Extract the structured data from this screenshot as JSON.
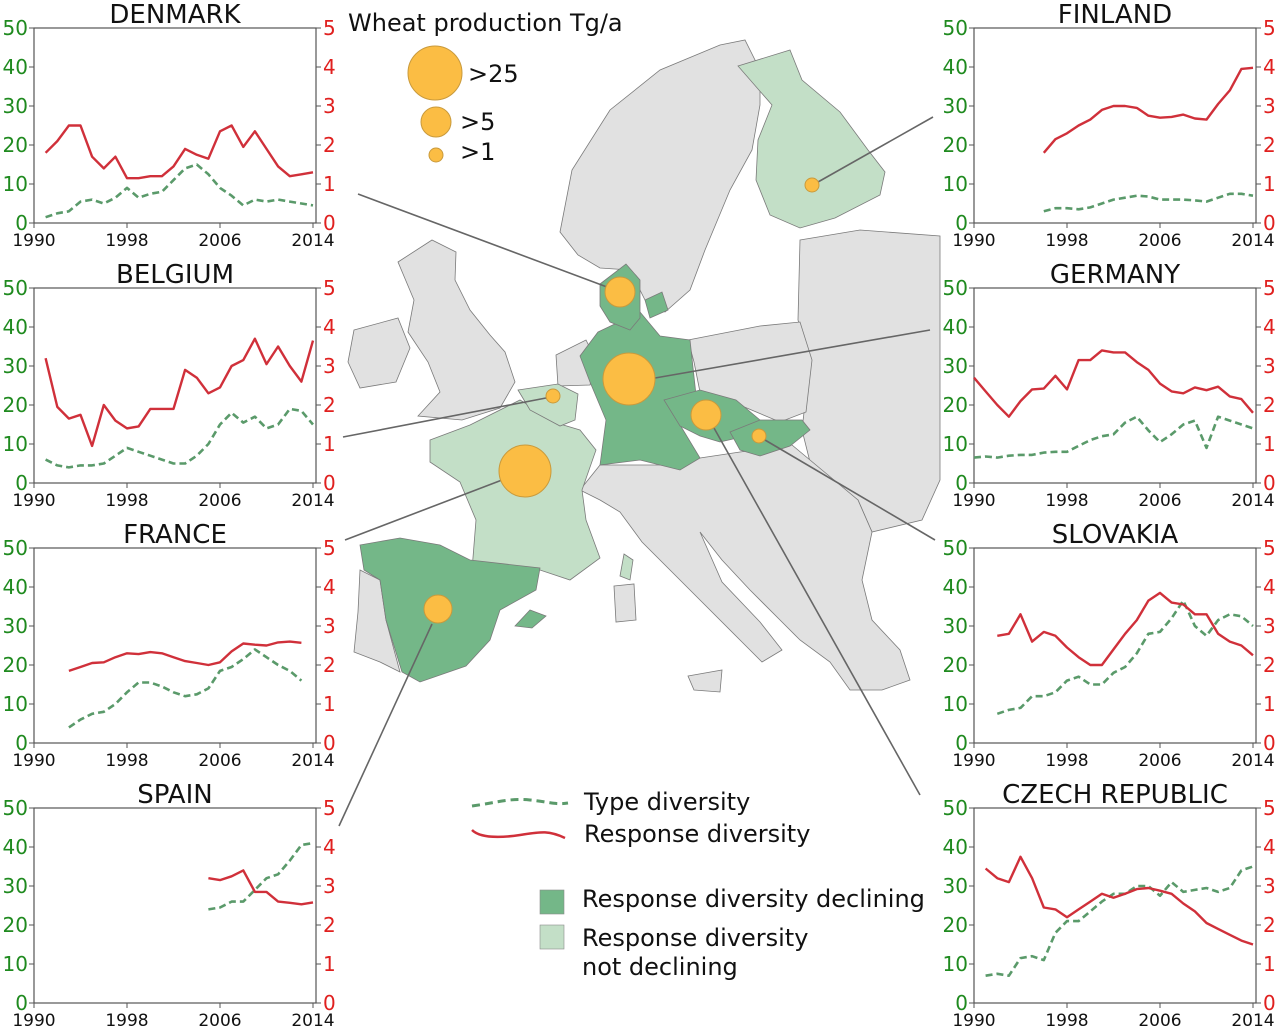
{
  "map": {
    "size_legend_title": "Wheat production Tg/a",
    "size_legend": [
      ">25",
      ">5",
      ">1"
    ],
    "colors": {
      "declining": "#74b788",
      "not_declining": "#c3dfc7",
      "other": "#e1e1e1",
      "bubble": "#fbbd44"
    }
  },
  "legend": {
    "type_diversity": "Type diversity",
    "response_diversity": "Response diversity",
    "declining": "Response diversity declining",
    "not_declining_line1": "Response diversity",
    "not_declining_line2": "not declining"
  },
  "chart_data": [
    {
      "type": "line",
      "title": "DENMARK",
      "xlim": [
        1990,
        2014
      ],
      "xticks": [
        "1990",
        "1998",
        "2006",
        "2014"
      ],
      "ylim_left": [
        0,
        50
      ],
      "yticks_left": [
        "0",
        "10",
        "20",
        "30",
        "40",
        "50"
      ],
      "ylim_right": [
        0,
        5
      ],
      "yticks_right": [
        "0",
        "1",
        "2",
        "3",
        "4",
        "5"
      ],
      "series": [
        {
          "name": "Type diversity",
          "axis": "left",
          "start": 1991,
          "values": [
            1.5,
            2.5,
            3,
            5.5,
            6,
            5,
            6.5,
            9,
            6.5,
            7.5,
            8,
            11,
            14,
            15,
            12.5,
            9,
            7,
            4.5,
            6,
            5.5,
            6,
            5.5,
            5,
            4.5
          ]
        },
        {
          "name": "Response diversity",
          "axis": "right",
          "start": 1991,
          "values": [
            1.8,
            2.1,
            2.5,
            2.5,
            1.7,
            1.4,
            1.7,
            1.15,
            1.15,
            1.2,
            1.2,
            1.45,
            1.9,
            1.75,
            1.65,
            2.35,
            2.5,
            1.95,
            2.35,
            1.9,
            1.45,
            1.2,
            1.25,
            1.3
          ]
        }
      ]
    },
    {
      "type": "line",
      "title": "BELGIUM",
      "xlim": [
        1990,
        2014
      ],
      "xticks": [
        "1990",
        "1998",
        "2006",
        "2014"
      ],
      "ylim_left": [
        0,
        50
      ],
      "yticks_left": [
        "0",
        "10",
        "20",
        "30",
        "40",
        "50"
      ],
      "ylim_right": [
        0,
        5
      ],
      "yticks_right": [
        "0",
        "1",
        "2",
        "3",
        "4",
        "5"
      ],
      "series": [
        {
          "name": "Type diversity",
          "axis": "left",
          "start": 1991,
          "values": [
            6,
            4.5,
            4,
            4.5,
            4.5,
            5,
            7,
            9,
            8,
            7,
            6,
            5,
            5,
            7,
            10,
            15,
            18,
            15.5,
            17,
            14,
            15,
            19,
            18.5,
            15
          ]
        },
        {
          "name": "Response diversity",
          "axis": "right",
          "start": 1991,
          "values": [
            3.2,
            1.95,
            1.65,
            1.75,
            0.95,
            2.0,
            1.6,
            1.4,
            1.45,
            1.9,
            1.9,
            1.9,
            2.9,
            2.7,
            2.3,
            2.45,
            3.0,
            3.15,
            3.7,
            3.05,
            3.5,
            3.0,
            2.6,
            3.65
          ]
        }
      ]
    },
    {
      "type": "line",
      "title": "FRANCE",
      "xlim": [
        1990,
        2014
      ],
      "xticks": [
        "1990",
        "1998",
        "2006",
        "2014"
      ],
      "ylim_left": [
        0,
        50
      ],
      "yticks_left": [
        "0",
        "10",
        "20",
        "30",
        "40",
        "50"
      ],
      "ylim_right": [
        0,
        5
      ],
      "yticks_right": [
        "0",
        "1",
        "2",
        "3",
        "4",
        "5"
      ],
      "series": [
        {
          "name": "Type diversity",
          "axis": "left",
          "start": 1993,
          "values": [
            4,
            6,
            7.5,
            8,
            10,
            13,
            15.5,
            15.5,
            14.5,
            13,
            12,
            12.5,
            14,
            18.5,
            19.5,
            21.5,
            24,
            22,
            20,
            18.5,
            16
          ]
        },
        {
          "name": "Response diversity",
          "axis": "right",
          "start": 1993,
          "values": [
            1.85,
            1.95,
            2.05,
            2.07,
            2.2,
            2.3,
            2.28,
            2.33,
            2.3,
            2.2,
            2.1,
            2.05,
            2.0,
            2.07,
            2.35,
            2.55,
            2.52,
            2.5,
            2.58,
            2.6,
            2.57
          ]
        }
      ]
    },
    {
      "type": "line",
      "title": "SPAIN",
      "xlim": [
        1990,
        2014
      ],
      "xticks": [
        "1990",
        "1998",
        "2006",
        "2014"
      ],
      "ylim_left": [
        0,
        50
      ],
      "yticks_left": [
        "0",
        "10",
        "20",
        "30",
        "40",
        "50"
      ],
      "ylim_right": [
        0,
        5
      ],
      "yticks_right": [
        "0",
        "1",
        "2",
        "3",
        "4",
        "5"
      ],
      "series": [
        {
          "name": "Type diversity",
          "axis": "left",
          "start": 2005,
          "values": [
            24,
            24.5,
            26,
            26,
            29,
            32,
            33,
            36.5,
            40.5,
            41
          ]
        },
        {
          "name": "Response diversity",
          "axis": "right",
          "start": 2005,
          "values": [
            3.2,
            3.15,
            3.25,
            3.4,
            2.85,
            2.85,
            2.6,
            2.57,
            2.53,
            2.58
          ]
        }
      ]
    },
    {
      "type": "line",
      "title": "FINLAND",
      "xlim": [
        1990,
        2014
      ],
      "xticks": [
        "1990",
        "1998",
        "2006",
        "2014"
      ],
      "ylim_left": [
        0,
        50
      ],
      "yticks_left": [
        "0",
        "10",
        "20",
        "30",
        "40",
        "50"
      ],
      "ylim_right": [
        0,
        5
      ],
      "yticks_right": [
        "0",
        "1",
        "2",
        "3",
        "4",
        "5"
      ],
      "series": [
        {
          "name": "Type diversity",
          "axis": "left",
          "start": 1996,
          "values": [
            3,
            3.8,
            3.8,
            3.5,
            4,
            5,
            6,
            6.5,
            7,
            6.8,
            6,
            6,
            6,
            5.8,
            5.5,
            6.5,
            7.5,
            7.5,
            7
          ]
        },
        {
          "name": "Response diversity",
          "axis": "right",
          "start": 1996,
          "values": [
            1.8,
            2.15,
            2.3,
            2.5,
            2.65,
            2.9,
            3.0,
            3.0,
            2.95,
            2.75,
            2.7,
            2.72,
            2.78,
            2.68,
            2.65,
            3.05,
            3.4,
            3.95,
            3.98
          ]
        }
      ]
    },
    {
      "type": "line",
      "title": "GERMANY",
      "xlim": [
        1990,
        2014
      ],
      "xticks": [
        "1990",
        "1998",
        "2006",
        "2014"
      ],
      "ylim_left": [
        0,
        50
      ],
      "yticks_left": [
        "0",
        "10",
        "20",
        "30",
        "40",
        "50"
      ],
      "ylim_right": [
        0,
        5
      ],
      "yticks_right": [
        "0",
        "1",
        "2",
        "3",
        "4",
        "5"
      ],
      "series": [
        {
          "name": "Type diversity",
          "axis": "left",
          "start": 1990,
          "values": [
            6.5,
            6.8,
            6.5,
            7,
            7.2,
            7.2,
            7.8,
            8,
            8,
            9.5,
            11,
            12,
            12.5,
            15.5,
            17,
            13.5,
            10.5,
            12.5,
            15,
            16,
            9,
            17,
            16,
            15,
            14
          ]
        },
        {
          "name": "Response diversity",
          "axis": "right",
          "start": 1990,
          "values": [
            2.7,
            2.35,
            2.0,
            1.7,
            2.1,
            2.4,
            2.42,
            2.75,
            2.4,
            3.15,
            3.15,
            3.4,
            3.35,
            3.35,
            3.1,
            2.9,
            2.55,
            2.35,
            2.3,
            2.45,
            2.38,
            2.47,
            2.22,
            2.15,
            1.8
          ]
        }
      ]
    },
    {
      "type": "line",
      "title": "SLOVAKIA",
      "xlim": [
        1990,
        2014
      ],
      "xticks": [
        "1990",
        "1998",
        "2006",
        "2014"
      ],
      "ylim_left": [
        0,
        50
      ],
      "yticks_left": [
        "0",
        "10",
        "20",
        "30",
        "40",
        "50"
      ],
      "ylim_right": [
        0,
        5
      ],
      "yticks_right": [
        "0",
        "1",
        "2",
        "3",
        "4",
        "5"
      ],
      "series": [
        {
          "name": "Type diversity",
          "axis": "left",
          "start": 1992,
          "values": [
            7.5,
            8.5,
            9,
            12,
            12,
            13,
            16,
            17,
            15,
            15,
            18,
            19.5,
            23,
            28,
            28.5,
            32,
            36.5,
            30,
            27.5,
            31.5,
            33,
            32.5,
            30
          ]
        },
        {
          "name": "Response diversity",
          "axis": "right",
          "start": 1992,
          "values": [
            2.75,
            2.8,
            3.3,
            2.6,
            2.85,
            2.75,
            2.45,
            2.2,
            2.0,
            2.0,
            2.4,
            2.8,
            3.15,
            3.65,
            3.85,
            3.6,
            3.55,
            3.3,
            3.3,
            2.8,
            2.6,
            2.5,
            2.25
          ]
        }
      ]
    },
    {
      "type": "line",
      "title": "CZECH REPUBLIC",
      "xlim": [
        1990,
        2014
      ],
      "xticks": [
        "1990",
        "1998",
        "2006",
        "2014"
      ],
      "ylim_left": [
        0,
        50
      ],
      "yticks_left": [
        "0",
        "10",
        "20",
        "30",
        "40",
        "50"
      ],
      "ylim_right": [
        0,
        5
      ],
      "yticks_right": [
        "0",
        "1",
        "2",
        "3",
        "4",
        "5"
      ],
      "series": [
        {
          "name": "Type diversity",
          "axis": "left",
          "start": 1991,
          "values": [
            7,
            7.5,
            7,
            11.5,
            12,
            11,
            18,
            21,
            21,
            23.5,
            26,
            28,
            28,
            30,
            30,
            27.5,
            31,
            28.5,
            29,
            29.5,
            28.5,
            29.5,
            34,
            35
          ]
        },
        {
          "name": "Response diversity",
          "axis": "right",
          "start": 1991,
          "values": [
            3.45,
            3.2,
            3.1,
            3.75,
            3.2,
            2.45,
            2.4,
            2.2,
            2.4,
            2.6,
            2.8,
            2.7,
            2.8,
            2.92,
            2.95,
            2.88,
            2.8,
            2.55,
            2.35,
            2.05,
            1.9,
            1.75,
            1.6,
            1.5
          ]
        }
      ]
    }
  ]
}
